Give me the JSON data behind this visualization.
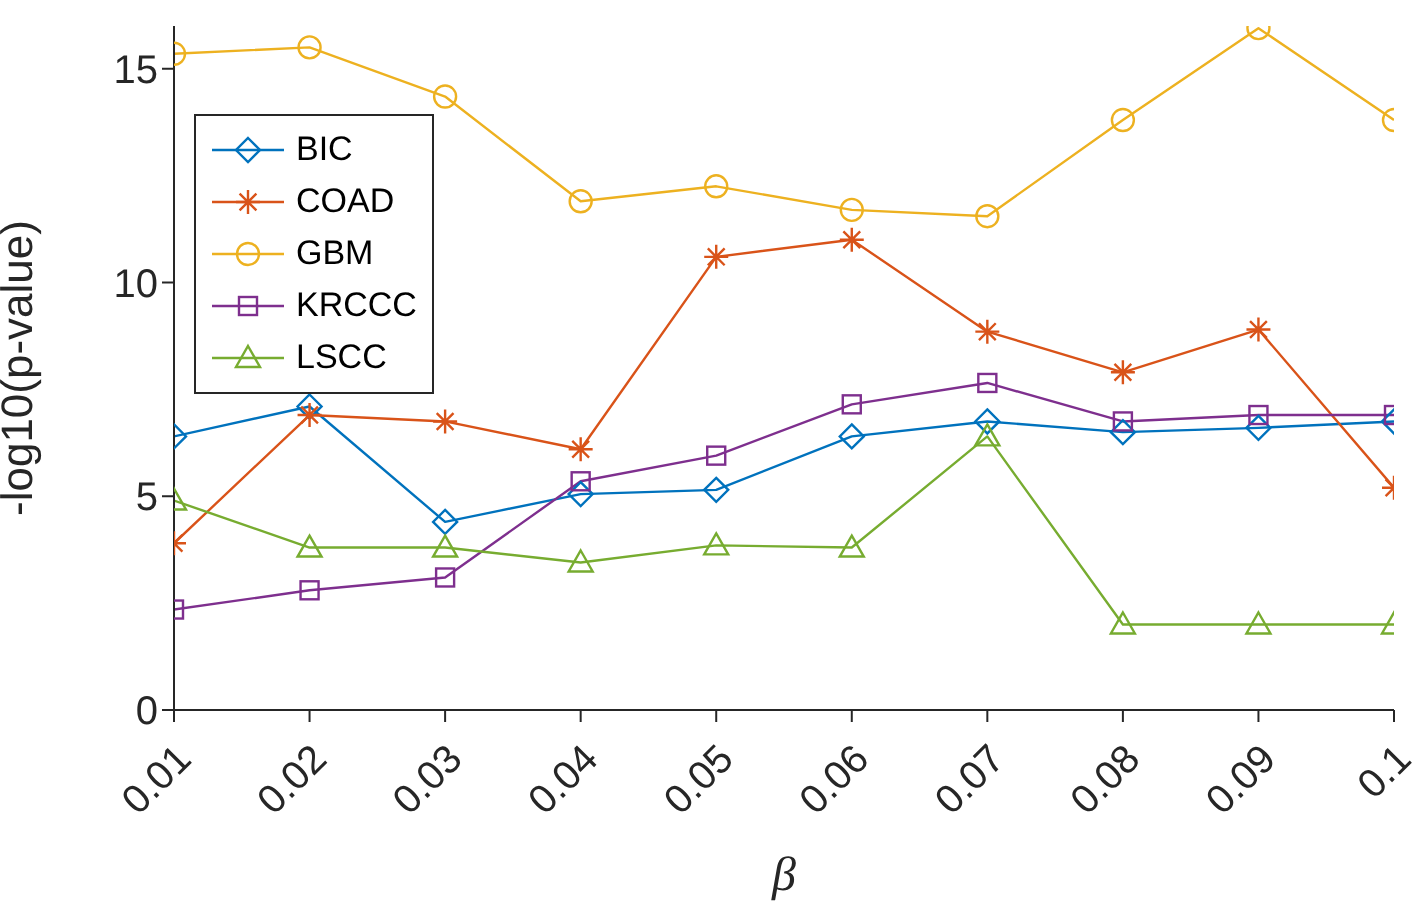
{
  "chart_data": {
    "type": "line",
    "xlabel": "β",
    "ylabel": "-log10(p-value)",
    "categories": [
      "0.01",
      "0.02",
      "0.03",
      "0.04",
      "0.05",
      "0.06",
      "0.07",
      "0.08",
      "0.09",
      "0.1"
    ],
    "ylim": [
      0,
      16
    ],
    "yticks": [
      0,
      5,
      10,
      15
    ],
    "grid": false,
    "legend": "top left",
    "series": [
      {
        "name": "BIC",
        "color": "#0072bd",
        "marker": "diamond",
        "values": [
          6.4,
          7.1,
          4.4,
          5.05,
          5.15,
          6.4,
          6.75,
          6.5,
          6.6,
          6.75
        ]
      },
      {
        "name": "COAD",
        "color": "#d95319",
        "marker": "cross",
        "values": [
          3.9,
          6.9,
          6.75,
          6.1,
          10.6,
          11.0,
          8.85,
          7.9,
          8.9,
          5.2
        ]
      },
      {
        "name": "GBM",
        "color": "#edb120",
        "marker": "circle",
        "values": [
          15.35,
          15.5,
          14.35,
          11.9,
          12.25,
          11.7,
          11.55,
          13.8,
          15.95,
          13.8
        ]
      },
      {
        "name": "KRCCC",
        "color": "#7e2f8e",
        "marker": "square",
        "values": [
          2.35,
          2.8,
          3.1,
          5.35,
          5.95,
          7.15,
          7.65,
          6.75,
          6.9,
          6.9
        ]
      },
      {
        "name": "LSCC",
        "color": "#77ac30",
        "marker": "triangle",
        "values": [
          4.9,
          3.8,
          3.8,
          3.45,
          3.85,
          3.8,
          6.4,
          2.0,
          2.0,
          2.0
        ]
      }
    ]
  }
}
